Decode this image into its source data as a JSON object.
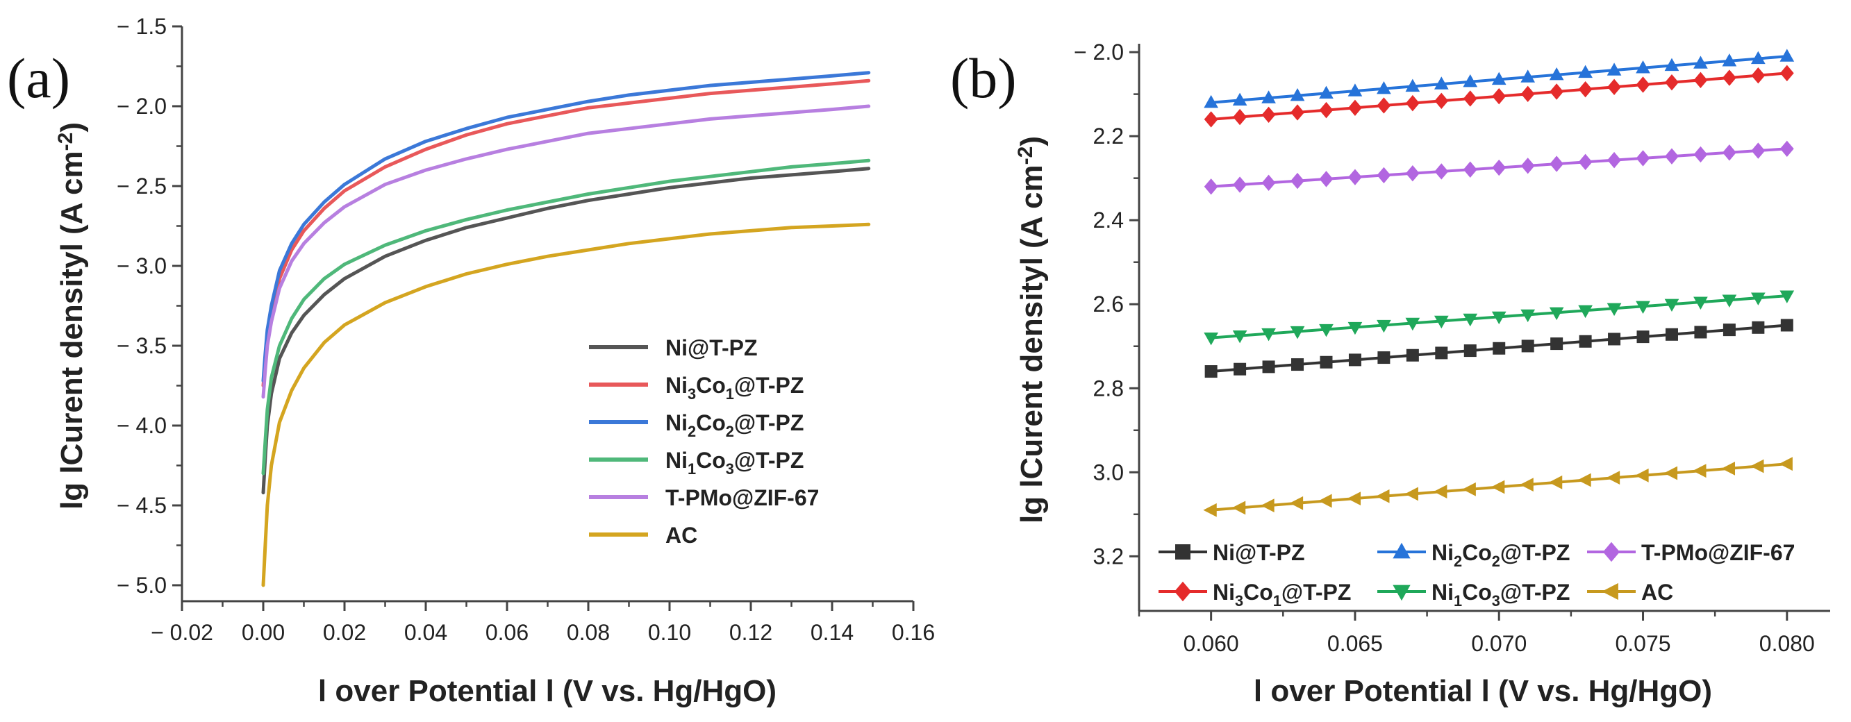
{
  "chart_data": [
    {
      "type": "line",
      "panel_label": "(a)",
      "title": "",
      "xlabel_bar": "l",
      "xlabel": "over Potential",
      "xlabel_bar2": "l",
      "xlabel_units": "(V vs. Hg/HgO)",
      "ylabel": "lg  lCurent densityl (A cm",
      "ylabel_sup": "-2",
      "ylabel_end": ")",
      "xlim": [
        -0.02,
        0.16
      ],
      "ylim": [
        -5.1,
        -1.5
      ],
      "y_inverted": false,
      "grid": false,
      "legend_position": "lower-right",
      "x_ticks": [
        -0.02,
        0.0,
        0.02,
        0.04,
        0.06,
        0.08,
        0.1,
        0.12,
        0.14,
        0.16
      ],
      "x_tick_labels": [
        "− 0.02",
        "0.00",
        "0.02",
        "0.04",
        "0.06",
        "0.08",
        "0.10",
        "0.12",
        "0.14",
        "0.16"
      ],
      "y_ticks": [
        -1.5,
        -2.0,
        -2.5,
        -3.0,
        -3.5,
        -4.0,
        -4.5,
        -5.0
      ],
      "y_tick_labels": [
        "− 1.5",
        "− 2.0",
        "− 2.5",
        "− 3.0",
        "− 3.5",
        "− 4.0",
        "− 4.5",
        "− 5.0"
      ],
      "series": [
        {
          "name": "Ni@T-PZ",
          "legend": [
            {
              "t": "Ni@T-PZ"
            }
          ],
          "color": "#555555",
          "x": [
            0.0,
            0.0005,
            0.001,
            0.002,
            0.004,
            0.007,
            0.01,
            0.015,
            0.02,
            0.03,
            0.04,
            0.05,
            0.06,
            0.07,
            0.08,
            0.09,
            0.1,
            0.11,
            0.12,
            0.13,
            0.14,
            0.149
          ],
          "values": [
            -4.42,
            -4.2,
            -4.0,
            -3.8,
            -3.58,
            -3.42,
            -3.31,
            -3.18,
            -3.08,
            -2.94,
            -2.84,
            -2.76,
            -2.7,
            -2.64,
            -2.59,
            -2.55,
            -2.51,
            -2.48,
            -2.45,
            -2.43,
            -2.41,
            -2.39
          ]
        },
        {
          "name": "Ni3Co1@T-PZ",
          "legend": [
            {
              "t": "Ni"
            },
            {
              "t": "3",
              "sub": true
            },
            {
              "t": "Co"
            },
            {
              "t": "1",
              "sub": true
            },
            {
              "t": "@T-PZ"
            }
          ],
          "color": "#e8585a",
          "x": [
            0.0,
            0.0005,
            0.001,
            0.002,
            0.004,
            0.007,
            0.01,
            0.015,
            0.02,
            0.03,
            0.04,
            0.05,
            0.06,
            0.07,
            0.08,
            0.09,
            0.1,
            0.11,
            0.12,
            0.13,
            0.14,
            0.149
          ],
          "values": [
            -3.75,
            -3.6,
            -3.45,
            -3.3,
            -3.08,
            -2.9,
            -2.78,
            -2.64,
            -2.53,
            -2.38,
            -2.27,
            -2.18,
            -2.11,
            -2.06,
            -2.01,
            -1.98,
            -1.95,
            -1.92,
            -1.9,
            -1.88,
            -1.86,
            -1.84
          ]
        },
        {
          "name": "Ni2Co2@T-PZ",
          "legend": [
            {
              "t": "Ni"
            },
            {
              "t": "2",
              "sub": true
            },
            {
              "t": "Co"
            },
            {
              "t": "2",
              "sub": true
            },
            {
              "t": "@T-PZ"
            }
          ],
          "color": "#3b78d8",
          "x": [
            0.0,
            0.0005,
            0.001,
            0.002,
            0.004,
            0.007,
            0.01,
            0.015,
            0.02,
            0.03,
            0.04,
            0.05,
            0.06,
            0.07,
            0.08,
            0.09,
            0.1,
            0.11,
            0.12,
            0.13,
            0.14,
            0.149
          ],
          "values": [
            -3.72,
            -3.55,
            -3.4,
            -3.25,
            -3.03,
            -2.86,
            -2.74,
            -2.6,
            -2.49,
            -2.33,
            -2.22,
            -2.14,
            -2.07,
            -2.02,
            -1.97,
            -1.93,
            -1.9,
            -1.87,
            -1.85,
            -1.83,
            -1.81,
            -1.79
          ]
        },
        {
          "name": "Ni1Co3@T-PZ",
          "legend": [
            {
              "t": "Ni"
            },
            {
              "t": "1",
              "sub": true
            },
            {
              "t": "Co"
            },
            {
              "t": "3",
              "sub": true
            },
            {
              "t": "@T-PZ"
            }
          ],
          "color": "#4fb87a",
          "x": [
            0.0,
            0.0005,
            0.001,
            0.002,
            0.004,
            0.007,
            0.01,
            0.015,
            0.02,
            0.03,
            0.04,
            0.05,
            0.06,
            0.07,
            0.08,
            0.09,
            0.1,
            0.11,
            0.12,
            0.13,
            0.14,
            0.149
          ],
          "values": [
            -4.3,
            -4.1,
            -3.9,
            -3.7,
            -3.5,
            -3.33,
            -3.21,
            -3.08,
            -2.99,
            -2.87,
            -2.78,
            -2.71,
            -2.65,
            -2.6,
            -2.55,
            -2.51,
            -2.47,
            -2.44,
            -2.41,
            -2.38,
            -2.36,
            -2.34
          ]
        },
        {
          "name": "T-PMo@ZIF-67",
          "legend": [
            {
              "t": "T-PMo@ZIF-67"
            }
          ],
          "color": "#b77fe0",
          "x": [
            0.0,
            0.0005,
            0.001,
            0.002,
            0.004,
            0.007,
            0.01,
            0.015,
            0.02,
            0.03,
            0.04,
            0.05,
            0.06,
            0.07,
            0.08,
            0.09,
            0.1,
            0.11,
            0.12,
            0.13,
            0.14,
            0.149
          ],
          "values": [
            -3.82,
            -3.65,
            -3.5,
            -3.35,
            -3.14,
            -2.97,
            -2.86,
            -2.73,
            -2.63,
            -2.49,
            -2.4,
            -2.33,
            -2.27,
            -2.22,
            -2.17,
            -2.14,
            -2.11,
            -2.08,
            -2.06,
            -2.04,
            -2.02,
            -2.0
          ]
        },
        {
          "name": "AC",
          "legend": [
            {
              "t": "AC"
            }
          ],
          "color": "#d4a520",
          "x": [
            0.0,
            0.0005,
            0.001,
            0.002,
            0.004,
            0.007,
            0.01,
            0.015,
            0.02,
            0.03,
            0.04,
            0.05,
            0.06,
            0.07,
            0.08,
            0.09,
            0.1,
            0.11,
            0.12,
            0.13,
            0.14,
            0.149
          ],
          "values": [
            -5.0,
            -4.75,
            -4.5,
            -4.25,
            -3.98,
            -3.78,
            -3.64,
            -3.48,
            -3.37,
            -3.23,
            -3.13,
            -3.05,
            -2.99,
            -2.94,
            -2.9,
            -2.86,
            -2.83,
            -2.8,
            -2.78,
            -2.76,
            -2.75,
            -2.74
          ]
        }
      ]
    },
    {
      "type": "line",
      "panel_label": "(b)",
      "title": "",
      "xlabel_bar": "l",
      "xlabel": "over Potential",
      "xlabel_bar2": "l",
      "xlabel_units": "(V vs. Hg/HgO)",
      "ylabel": "lg  lCurent densityl (A cm",
      "ylabel_sup": "-2",
      "ylabel_end": ")",
      "xlim": [
        0.0575,
        0.0815
      ],
      "ylim": [
        -1.98,
        -3.33
      ],
      "y_inverted": true,
      "grid": false,
      "legend_position": "bottom, 2 rows x 3 columns",
      "x_ticks": [
        0.06,
        0.065,
        0.07,
        0.075,
        0.08
      ],
      "x_tick_labels": [
        "0.060",
        "0.065",
        "0.070",
        "0.075",
        "0.080"
      ],
      "y_ticks": [
        -2.0,
        -2.2,
        -2.4,
        -2.6,
        -2.8,
        -3.0,
        -3.2
      ],
      "y_tick_labels": [
        "− 2.0",
        "2.2",
        "2.4",
        "2.6",
        "2.8",
        "3.0",
        "3.2"
      ],
      "x_points": [
        0.06,
        0.061,
        0.062,
        0.063,
        0.064,
        0.065,
        0.066,
        0.067,
        0.068,
        0.069,
        0.07,
        0.071,
        0.072,
        0.073,
        0.074,
        0.075,
        0.076,
        0.077,
        0.078,
        0.079,
        0.08
      ],
      "series": [
        {
          "name": "Ni@T-PZ",
          "legend": [
            {
              "t": "Ni@T-PZ"
            }
          ],
          "color": "#333333",
          "marker": "square",
          "y_start": -2.76,
          "y_end": -2.65
        },
        {
          "name": "Ni2Co2@T-PZ",
          "legend": [
            {
              "t": "Ni"
            },
            {
              "t": "2",
              "sub": true
            },
            {
              "t": "Co"
            },
            {
              "t": "2",
              "sub": true
            },
            {
              "t": "@T-PZ"
            }
          ],
          "color": "#2673d9",
          "marker": "triangle-up",
          "y_start": -2.12,
          "y_end": -2.01
        },
        {
          "name": "T-PMo@ZIF-67",
          "legend": [
            {
              "t": "T-PMo@ZIF-67"
            }
          ],
          "color": "#b266e0",
          "marker": "diamond",
          "y_start": -2.32,
          "y_end": -2.23
        },
        {
          "name": "Ni3Co1@T-PZ",
          "legend": [
            {
              "t": "Ni"
            },
            {
              "t": "3",
              "sub": true
            },
            {
              "t": "Co"
            },
            {
              "t": "1",
              "sub": true
            },
            {
              "t": "@T-PZ"
            }
          ],
          "color": "#e52b2b",
          "marker": "diamond",
          "y_start": -2.16,
          "y_end": -2.05
        },
        {
          "name": "Ni1Co3@T-PZ",
          "legend": [
            {
              "t": "Ni"
            },
            {
              "t": "1",
              "sub": true
            },
            {
              "t": "Co"
            },
            {
              "t": "3",
              "sub": true
            },
            {
              "t": "@T-PZ"
            }
          ],
          "color": "#1fa85a",
          "marker": "triangle-down",
          "y_start": -2.68,
          "y_end": -2.58
        },
        {
          "name": "AC",
          "legend": [
            {
              "t": "AC"
            }
          ],
          "color": "#c7991e",
          "marker": "triangle-left",
          "y_start": -3.09,
          "y_end": -2.98
        }
      ]
    }
  ]
}
